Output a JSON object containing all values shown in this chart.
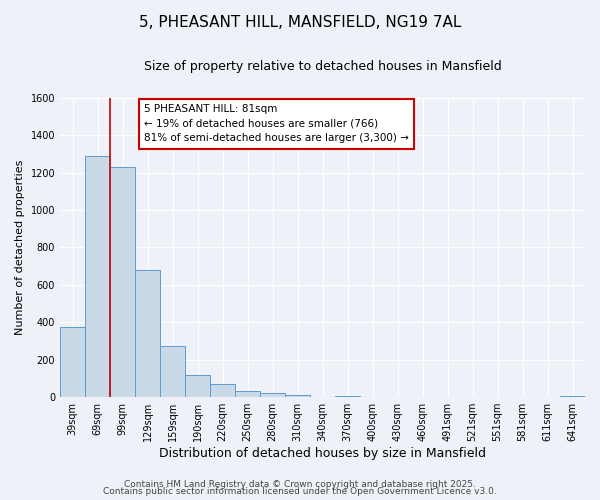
{
  "title": "5, PHEASANT HILL, MANSFIELD, NG19 7AL",
  "subtitle": "Size of property relative to detached houses in Mansfield",
  "xlabel": "Distribution of detached houses by size in Mansfield",
  "ylabel": "Number of detached properties",
  "bar_labels": [
    "39sqm",
    "69sqm",
    "99sqm",
    "129sqm",
    "159sqm",
    "190sqm",
    "220sqm",
    "250sqm",
    "280sqm",
    "310sqm",
    "340sqm",
    "370sqm",
    "400sqm",
    "430sqm",
    "460sqm",
    "491sqm",
    "521sqm",
    "551sqm",
    "581sqm",
    "611sqm",
    "641sqm"
  ],
  "bar_values": [
    375,
    1290,
    1230,
    680,
    275,
    120,
    70,
    35,
    20,
    10,
    0,
    5,
    0,
    0,
    0,
    0,
    0,
    0,
    0,
    0,
    5
  ],
  "bar_color": "#c9d9e8",
  "bar_edge_color": "#5b9bd5",
  "vline_x_index": 1,
  "vline_color": "#cc0000",
  "annotation_title": "5 PHEASANT HILL: 81sqm",
  "annotation_line1": "← 19% of detached houses are smaller (766)",
  "annotation_line2": "81% of semi-detached houses are larger (3,300) →",
  "annotation_box_color": "#ffffff",
  "annotation_box_edge_color": "#cc0000",
  "ylim": [
    0,
    1600
  ],
  "yticks": [
    0,
    200,
    400,
    600,
    800,
    1000,
    1200,
    1400,
    1600
  ],
  "footer1": "Contains HM Land Registry data © Crown copyright and database right 2025.",
  "footer2": "Contains public sector information licensed under the Open Government Licence v3.0.",
  "bg_color": "#eef2f8",
  "grid_color": "#ffffff",
  "title_fontsize": 11,
  "subtitle_fontsize": 9,
  "xlabel_fontsize": 9,
  "ylabel_fontsize": 8,
  "tick_fontsize": 7,
  "annot_fontsize": 7.5,
  "footer_fontsize": 6.5
}
